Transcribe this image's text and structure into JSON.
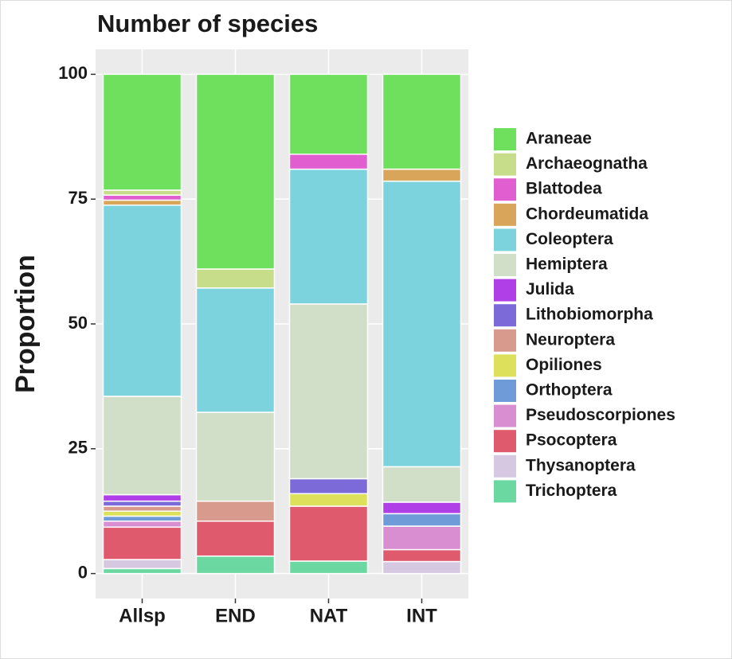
{
  "chart_data": {
    "type": "stacked_bar",
    "title": "Number of species",
    "y_label": "Proportion",
    "categories": [
      "Allsp",
      "END",
      "NAT",
      "INT"
    ],
    "series": [
      {
        "name": "Araneae",
        "color": "#6ee05e",
        "values": [
          23.2,
          39,
          16,
          19
        ]
      },
      {
        "name": "Archaeognatha",
        "color": "#c8dd8a",
        "values": [
          1,
          3.8,
          0,
          0
        ]
      },
      {
        "name": "Blattodea",
        "color": "#e05ed0",
        "values": [
          1,
          0,
          3,
          0
        ]
      },
      {
        "name": "Chordeumatida",
        "color": "#d8a55a",
        "values": [
          1,
          0,
          0,
          2.4
        ]
      },
      {
        "name": "Coleoptera",
        "color": "#7dd3dd",
        "values": [
          38.3,
          24.9,
          27,
          57.2
        ]
      },
      {
        "name": "Hemiptera",
        "color": "#d2dfc8",
        "values": [
          19.7,
          17.8,
          35,
          7.1
        ]
      },
      {
        "name": "Julida",
        "color": "#b13fe8",
        "values": [
          1.3,
          0,
          0,
          2.3
        ]
      },
      {
        "name": "Lithobiomorpha",
        "color": "#7b6ad8",
        "values": [
          1,
          0,
          3,
          0
        ]
      },
      {
        "name": "Neuroptera",
        "color": "#d99a8e",
        "values": [
          1,
          4,
          0,
          0
        ]
      },
      {
        "name": "Opiliones",
        "color": "#dde05a",
        "values": [
          1,
          0,
          2.5,
          0
        ]
      },
      {
        "name": "Orthoptera",
        "color": "#6f9cd8",
        "values": [
          1,
          0,
          0,
          2.5
        ]
      },
      {
        "name": "Pseudoscorpiones",
        "color": "#d88ed0",
        "values": [
          1.2,
          0,
          0,
          4.7
        ]
      },
      {
        "name": "Psocoptera",
        "color": "#e05a6e",
        "values": [
          6.5,
          7,
          11,
          2.4
        ]
      },
      {
        "name": "Thysanoptera",
        "color": "#d5c8e0",
        "values": [
          1.8,
          0,
          0,
          2.4
        ]
      },
      {
        "name": "Trichoptera",
        "color": "#6ad8a0",
        "values": [
          1,
          3.5,
          2.5,
          0
        ]
      }
    ],
    "ylim": [
      -5,
      105
    ],
    "yticks": [
      0,
      25,
      50,
      75,
      100
    ],
    "grid": true
  }
}
